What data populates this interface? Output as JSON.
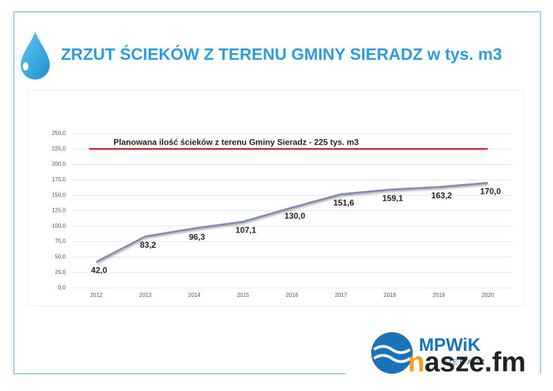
{
  "chart_data": {
    "type": "line",
    "title": "ZRZUT ŚCIEKÓW Z TERENU GMINY SIERADZ w tys. m3",
    "categories": [
      "2012",
      "2013",
      "2014",
      "2015",
      "2016",
      "2017",
      "2018",
      "2019",
      "2020"
    ],
    "values": [
      42.0,
      83.2,
      96.3,
      107.1,
      130.0,
      151.6,
      159.1,
      163.2,
      170.0
    ],
    "value_labels": [
      "42,0",
      "83,2",
      "96,3",
      "107,1",
      "130,0",
      "151,6",
      "159,1",
      "163,2",
      "170,0"
    ],
    "color": "#8390ad",
    "ylim": [
      0,
      250
    ],
    "yticks": [
      {
        "value": 0,
        "label": "0,0"
      },
      {
        "value": 25,
        "label": "25,0"
      },
      {
        "value": 50,
        "label": "50,0"
      },
      {
        "value": 75,
        "label": "75,0"
      },
      {
        "value": 100,
        "label": "100,0"
      },
      {
        "value": 125,
        "label": "125,0"
      },
      {
        "value": 150,
        "label": "150,0"
      },
      {
        "value": 175,
        "label": "175,0"
      },
      {
        "value": 200,
        "label": "200,0"
      },
      {
        "value": 225,
        "label": "225,0"
      },
      {
        "value": 250,
        "label": "250,0"
      }
    ],
    "grid": true,
    "reference_line": {
      "value": 225,
      "label": "Planowana ilość ścieków z terenu Gminy Sieradz - 225 tys. m3",
      "color": "#d02a2e"
    }
  },
  "branding": {
    "logo": "MPWiK",
    "logo_sub": "SIERADZ",
    "watermark_n": "n",
    "watermark": "asze.fm"
  }
}
